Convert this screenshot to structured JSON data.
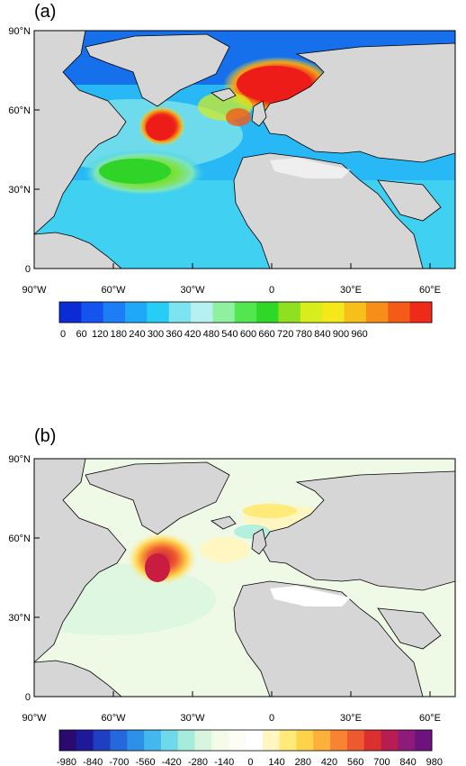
{
  "panel_a": {
    "label": "(a)",
    "lat_labels": [
      "90°N",
      "60°N",
      "30°N",
      "0"
    ],
    "lon_labels": [
      "90°W",
      "60°W",
      "30°W",
      "0",
      "30°E",
      "60°E"
    ],
    "colorbar_labels": [
      "0",
      "60",
      "120",
      "180",
      "240",
      "300",
      "360",
      "420",
      "480",
      "540",
      "600",
      "660",
      "720",
      "780",
      "840",
      "900",
      "960"
    ],
    "colorbar_colors": [
      "#0a2bd6",
      "#1553f0",
      "#1c7df5",
      "#1fa8f7",
      "#28cdf5",
      "#7ee3f0",
      "#b7f0f0",
      "#8ff0a0",
      "#52e650",
      "#2fd826",
      "#8fe020",
      "#d8ee1c",
      "#f5e81a",
      "#f7bf1a",
      "#f78e1a",
      "#f45a18",
      "#ee2a18"
    ]
  },
  "panel_b": {
    "label": "(b)",
    "lat_labels": [
      "90°N",
      "60°N",
      "30°N",
      "0"
    ],
    "lon_labels": [
      "90°W",
      "60°W",
      "30°W",
      "0",
      "30°E",
      "60°E"
    ],
    "colorbar_labels": [
      "-980",
      "-840",
      "-700",
      "-560",
      "-420",
      "-280",
      "-140",
      "0",
      "140",
      "280",
      "420",
      "560",
      "700",
      "840",
      "980"
    ],
    "colorbar_colors": [
      "#2a0a6e",
      "#1d1a9a",
      "#1f3fc2",
      "#2468dc",
      "#2d90e8",
      "#43b8ef",
      "#6fd8ea",
      "#a6ecdc",
      "#d8f6df",
      "#f4fbe8",
      "#fdfdf5",
      "#ffffff",
      "#fff6c2",
      "#ffea7a",
      "#ffd34a",
      "#fdb03a",
      "#f88433",
      "#ee5a30",
      "#da3030",
      "#b81d52",
      "#8e1a7a",
      "#6e137e"
    ]
  }
}
